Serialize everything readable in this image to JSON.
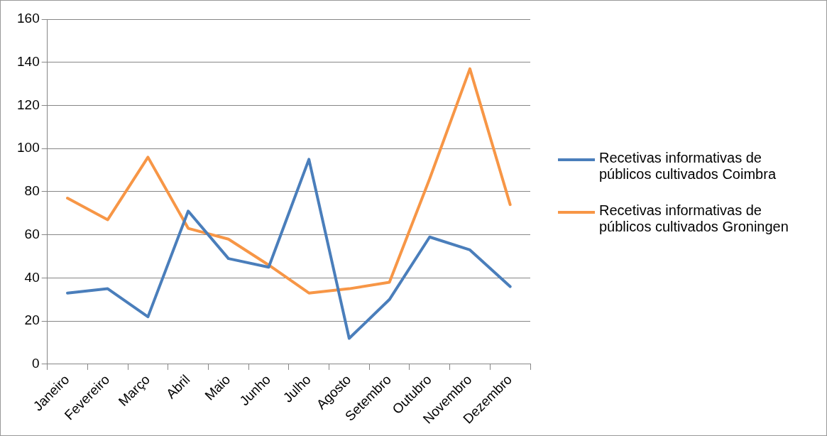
{
  "chart_data": {
    "type": "line",
    "categories": [
      "Janeiro",
      "Fevereiro",
      "Março",
      "Abril",
      "Maio",
      "Junho",
      "Julho",
      "Agosto",
      "Setembro",
      "Outubro",
      "Novembro",
      "Dezembro"
    ],
    "series": [
      {
        "name": "Recetivas informativas de públicos cultivados Coimbra",
        "color": "#4a7ebb",
        "values": [
          33,
          35,
          22,
          71,
          49,
          45,
          95,
          12,
          30,
          59,
          53,
          36
        ]
      },
      {
        "name": "Recetivas informativas de públicos cultivados Groningen",
        "color": "#f79646",
        "values": [
          77,
          67,
          96,
          63,
          58,
          46,
          33,
          35,
          38,
          86,
          137,
          74
        ]
      }
    ],
    "ylim": [
      0,
      160
    ],
    "yticks": [
      0,
      20,
      40,
      60,
      80,
      100,
      120,
      140,
      160
    ],
    "grid": "y",
    "legend": "right",
    "marker": "none",
    "line_style": "solid"
  }
}
